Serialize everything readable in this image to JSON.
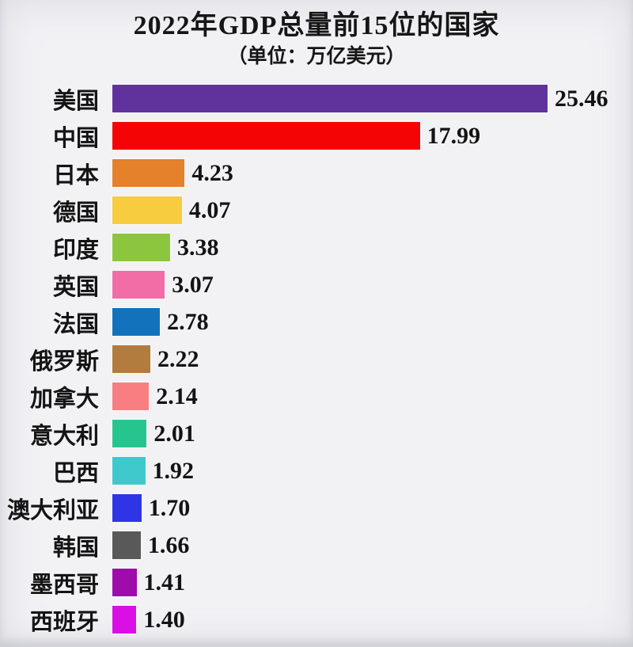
{
  "title": "2022年GDP总量前15位的国家",
  "subtitle": "（单位：万亿美元）",
  "chart_data": {
    "type": "bar",
    "orientation": "horizontal",
    "title": "2022年GDP总量前15位的国家",
    "subtitle": "（单位：万亿美元）",
    "unit": "万亿美元",
    "xlim": [
      0,
      25.46
    ],
    "grid": false,
    "legend": false,
    "value_labels_shown": true,
    "categories": [
      "美国",
      "中国",
      "日本",
      "德国",
      "印度",
      "英国",
      "法国",
      "俄罗斯",
      "加拿大",
      "意大利",
      "巴西",
      "澳大利亚",
      "韩国",
      "墨西哥",
      "西班牙"
    ],
    "values": [
      25.46,
      17.99,
      4.23,
      4.07,
      3.38,
      3.07,
      2.78,
      2.22,
      2.14,
      2.01,
      1.92,
      1.7,
      1.66,
      1.41,
      1.4
    ],
    "value_labels": [
      "25.46",
      "17.99",
      "4.23",
      "4.07",
      "3.38",
      "3.07",
      "2.78",
      "2.22",
      "2.14",
      "2.01",
      "1.92",
      "1.70",
      "1.66",
      "1.41",
      "1.40"
    ],
    "bar_colors": [
      "#60339c",
      "#f40404",
      "#e5802b",
      "#f7cc3e",
      "#8cc63f",
      "#f26ca6",
      "#1273bc",
      "#b17c3d",
      "#f97e81",
      "#26c590",
      "#3fc9cd",
      "#2f35e5",
      "#595959",
      "#9e0caa",
      "#d90fe4"
    ]
  },
  "colors": {
    "background": "#f2f1f4",
    "text": "#141414"
  }
}
